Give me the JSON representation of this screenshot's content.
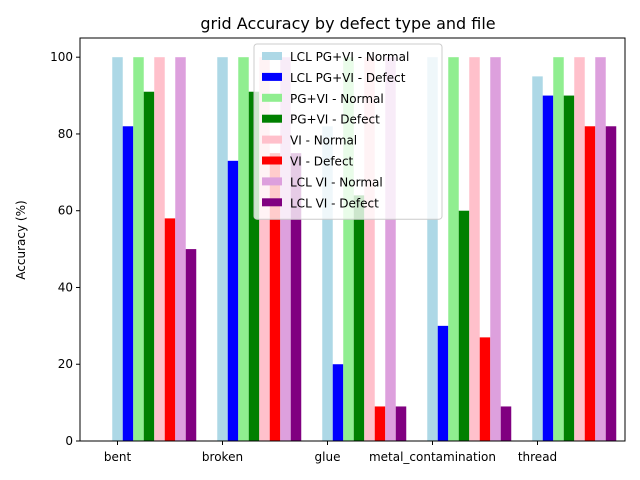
{
  "chart_data": {
    "type": "bar",
    "title": "grid Accuracy by defect type and file",
    "xlabel": "",
    "ylabel": "Accuracy (%)",
    "ylim": [
      0,
      105
    ],
    "yticks": [
      0,
      20,
      40,
      60,
      80,
      100
    ],
    "categories": [
      "bent",
      "broken",
      "glue",
      "metal_contamination",
      "thread"
    ],
    "legend_position": "top-center",
    "grid": false,
    "series": [
      {
        "name": "LCL PG+VI - Normal",
        "color": "#add8e6",
        "values": [
          100,
          100,
          82,
          100,
          95
        ]
      },
      {
        "name": "LCL PG+VI - Defect",
        "color": "#0000ff",
        "values": [
          82,
          73,
          20,
          30,
          90
        ]
      },
      {
        "name": "PG+VI - Normal",
        "color": "#90ee90",
        "values": [
          100,
          100,
          100,
          100,
          100
        ]
      },
      {
        "name": "PG+VI - Defect",
        "color": "#008000",
        "values": [
          91,
          91,
          64,
          60,
          90
        ]
      },
      {
        "name": "VI - Normal",
        "color": "#ffc0cb",
        "values": [
          100,
          100,
          100,
          100,
          100
        ]
      },
      {
        "name": "VI - Defect",
        "color": "#ff0000",
        "values": [
          58,
          75,
          9,
          27,
          82
        ]
      },
      {
        "name": "LCL VI - Normal",
        "color": "#dda0dd",
        "values": [
          100,
          100,
          100,
          100,
          100
        ]
      },
      {
        "name": "LCL VI - Defect",
        "color": "#800080",
        "values": [
          50,
          75,
          9,
          9,
          82
        ]
      }
    ]
  }
}
